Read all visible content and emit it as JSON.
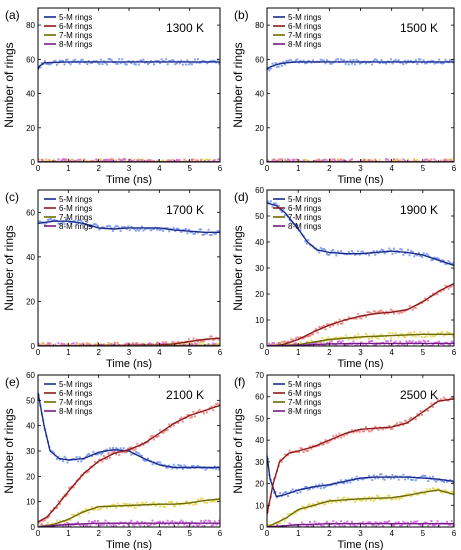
{
  "chart_data": [
    {
      "type": "line",
      "panel_label": "(a)",
      "annotation": "1300 K",
      "xlabel": "Time (ns)",
      "ylabel": "Number of rings",
      "xlim": [
        0,
        6
      ],
      "ylim": [
        0,
        90
      ],
      "x_ticks": [
        0,
        1,
        2,
        3,
        4,
        5,
        6
      ],
      "y_ticks": [
        0,
        20,
        40,
        60,
        80
      ],
      "x_ticklabels": [
        "0",
        "1",
        "2",
        "3",
        "4",
        "5",
        "6"
      ],
      "y_ticklabels": [
        "0",
        "20",
        "40",
        "60",
        "80"
      ],
      "legend": [
        "5-M rings",
        "6-M rings",
        "7-M rings",
        "8-M rings"
      ],
      "series": [
        {
          "name": "5-M rings",
          "color": "#1a2a8a",
          "scatter_color": "#6f8ff0",
          "x": [
            0,
            0.05,
            0.2,
            1,
            2,
            3,
            4,
            5,
            6
          ],
          "y": [
            54,
            56,
            58,
            58.5,
            58.5,
            58.5,
            58.5,
            58.5,
            58.5
          ]
        },
        {
          "name": "6-M rings",
          "color": "#8b1a1a",
          "scatter_color": "#f07a7a",
          "x": [
            0,
            6
          ],
          "y": [
            0,
            0
          ]
        },
        {
          "name": "7-M rings",
          "color": "#6e6a00",
          "scatter_color": "#e2d64a",
          "x": [
            0,
            6
          ],
          "y": [
            0,
            0
          ]
        },
        {
          "name": "8-M rings",
          "color": "#7a1a8a",
          "scatter_color": "#d060e0",
          "x": [
            0,
            6
          ],
          "y": [
            0,
            0
          ]
        }
      ]
    },
    {
      "type": "line",
      "panel_label": "(b)",
      "annotation": "1500 K",
      "xlabel": "Time (ns)",
      "ylabel": "Number of rings",
      "xlim": [
        0,
        6
      ],
      "ylim": [
        0,
        90
      ],
      "x_ticks": [
        0,
        1,
        2,
        3,
        4,
        5,
        6
      ],
      "y_ticks": [
        0,
        20,
        40,
        60,
        80
      ],
      "x_ticklabels": [
        "0",
        "1",
        "2",
        "3",
        "4",
        "5",
        "6"
      ],
      "y_ticklabels": [
        "0",
        "20",
        "40",
        "60",
        "80"
      ],
      "legend": [
        "5-M rings",
        "6-M rings",
        "7-M rings",
        "8-M rings"
      ],
      "series": [
        {
          "name": "5-M rings",
          "color": "#1a2a8a",
          "scatter_color": "#6f8ff0",
          "x": [
            0,
            0.1,
            0.3,
            0.6,
            1,
            2,
            3,
            4,
            5,
            6
          ],
          "y": [
            54,
            55.5,
            57,
            58,
            58.5,
            58.5,
            58.5,
            58.5,
            58.5,
            58.5
          ]
        },
        {
          "name": "6-M rings",
          "color": "#8b1a1a",
          "scatter_color": "#f07a7a",
          "x": [
            0,
            6
          ],
          "y": [
            0,
            0
          ]
        },
        {
          "name": "7-M rings",
          "color": "#6e6a00",
          "scatter_color": "#e2d64a",
          "x": [
            0,
            6
          ],
          "y": [
            0,
            0
          ]
        },
        {
          "name": "8-M rings",
          "color": "#7a1a8a",
          "scatter_color": "#d060e0",
          "x": [
            0,
            6
          ],
          "y": [
            0,
            0
          ]
        }
      ]
    },
    {
      "type": "line",
      "panel_label": "(c)",
      "annotation": "1700 K",
      "xlabel": "Time (ns)",
      "ylabel": "Number of rings",
      "xlim": [
        0,
        6
      ],
      "ylim": [
        0,
        70
      ],
      "x_ticks": [
        0,
        1,
        2,
        3,
        4,
        5,
        6
      ],
      "y_ticks": [
        0,
        20,
        40,
        60
      ],
      "x_ticklabels": [
        "0",
        "1",
        "2",
        "3",
        "4",
        "5",
        "6"
      ],
      "y_ticklabels": [
        "0",
        "20",
        "40",
        "60"
      ],
      "legend": [
        "5-M rings",
        "6-M rings",
        "7-M rings",
        "8-M rings"
      ],
      "series": [
        {
          "name": "5-M rings",
          "color": "#1a2a8a",
          "scatter_color": "#6f8ff0",
          "x": [
            0,
            0.5,
            1,
            1.5,
            2,
            2.5,
            3,
            3.5,
            4,
            4.5,
            5,
            5.5,
            6
          ],
          "y": [
            55,
            56,
            56,
            55,
            53,
            52.5,
            53,
            53,
            53,
            52,
            51.5,
            51,
            51
          ]
        },
        {
          "name": "6-M rings",
          "color": "#8b1a1a",
          "scatter_color": "#f07a7a",
          "x": [
            0,
            1,
            2,
            3,
            4,
            4.5,
            5,
            5.5,
            6
          ],
          "y": [
            0,
            0,
            0.3,
            0.3,
            0.5,
            1,
            2,
            3,
            3.5
          ]
        },
        {
          "name": "7-M rings",
          "color": "#6e6a00",
          "scatter_color": "#e2d64a",
          "x": [
            0,
            6
          ],
          "y": [
            0,
            0.3
          ]
        },
        {
          "name": "8-M rings",
          "color": "#7a1a8a",
          "scatter_color": "#d060e0",
          "x": [
            0,
            6
          ],
          "y": [
            0,
            0
          ]
        }
      ]
    },
    {
      "type": "line",
      "panel_label": "(d)",
      "annotation": "1900 K",
      "xlabel": "Time (ns)",
      "ylabel": "Number of rings",
      "xlim": [
        0,
        6
      ],
      "ylim": [
        0,
        60
      ],
      "x_ticks": [
        0,
        1,
        2,
        3,
        4,
        5,
        6
      ],
      "y_ticks": [
        0,
        10,
        20,
        30,
        40,
        50,
        60
      ],
      "x_ticklabels": [
        "0",
        "1",
        "2",
        "3",
        "4",
        "5",
        "6"
      ],
      "y_ticklabels": [
        "0",
        "10",
        "20",
        "30",
        "40",
        "50",
        "60"
      ],
      "legend": [
        "5-M rings",
        "6-M rings",
        "7-M rings",
        "8-M rings"
      ],
      "series": [
        {
          "name": "5-M rings",
          "color": "#1a2a8a",
          "scatter_color": "#6f8ff0",
          "x": [
            0,
            0.3,
            0.6,
            1,
            1.3,
            1.6,
            2,
            2.5,
            3,
            3.5,
            4,
            4.5,
            5,
            5.5,
            6
          ],
          "y": [
            55,
            54,
            51,
            45,
            40,
            37,
            36,
            35.5,
            35.5,
            36,
            36.5,
            36,
            35,
            33,
            31
          ]
        },
        {
          "name": "6-M rings",
          "color": "#8b1a1a",
          "scatter_color": "#f07a7a",
          "x": [
            0,
            0.5,
            1,
            1.5,
            2,
            2.5,
            3,
            3.5,
            4,
            4.5,
            5,
            5.5,
            6
          ],
          "y": [
            0,
            0.5,
            2.5,
            5.5,
            8,
            10,
            11.5,
            12.5,
            13,
            14,
            17,
            21,
            24
          ]
        },
        {
          "name": "7-M rings",
          "color": "#6e6a00",
          "scatter_color": "#e2d64a",
          "x": [
            0,
            1,
            1.5,
            2,
            3,
            4,
            5,
            6
          ],
          "y": [
            0,
            0.5,
            1.5,
            2.5,
            3.5,
            4,
            4.5,
            4.5
          ]
        },
        {
          "name": "8-M rings",
          "color": "#7a1a8a",
          "scatter_color": "#d060e0",
          "x": [
            0,
            1,
            2,
            3,
            4,
            5,
            6
          ],
          "y": [
            0,
            0.3,
            0.8,
            1,
            1,
            1,
            1
          ]
        }
      ]
    },
    {
      "type": "line",
      "panel_label": "(e)",
      "annotation": "2100 K",
      "xlabel": "Time (ns)",
      "ylabel": "Number of rings",
      "xlim": [
        0,
        6
      ],
      "ylim": [
        0,
        60
      ],
      "x_ticks": [
        0,
        1,
        2,
        3,
        4,
        5,
        6
      ],
      "y_ticks": [
        0,
        10,
        20,
        30,
        40,
        50,
        60
      ],
      "x_ticklabels": [
        "0",
        "1",
        "2",
        "3",
        "4",
        "5",
        "6"
      ],
      "y_ticklabels": [
        "0",
        "10",
        "20",
        "30",
        "40",
        "50",
        "60"
      ],
      "legend": [
        "5-M rings",
        "6-M rings",
        "7-M rings",
        "8-M rings"
      ],
      "series": [
        {
          "name": "5-M rings",
          "color": "#1a2a8a",
          "scatter_color": "#6f8ff0",
          "x": [
            0,
            0.2,
            0.4,
            0.7,
            1,
            1.5,
            2,
            2.5,
            3,
            3.5,
            4,
            4.5,
            5,
            5.5,
            6
          ],
          "y": [
            53,
            40,
            30,
            27,
            26.5,
            27,
            29.5,
            30.5,
            30,
            27,
            24.5,
            23.5,
            23.5,
            23.5,
            23.5
          ]
        },
        {
          "name": "6-M rings",
          "color": "#8b1a1a",
          "scatter_color": "#f07a7a",
          "x": [
            0,
            0.3,
            0.6,
            1,
            1.5,
            2,
            2.5,
            3,
            3.5,
            4,
            4.5,
            5,
            5.5,
            6
          ],
          "y": [
            2,
            4,
            8,
            14,
            21,
            26,
            29,
            30.5,
            33,
            37,
            41,
            44,
            46,
            48
          ]
        },
        {
          "name": "7-M rings",
          "color": "#6e6a00",
          "scatter_color": "#e2d64a",
          "x": [
            0,
            0.5,
            1,
            1.5,
            2,
            3,
            4,
            4.5,
            5,
            5.5,
            6
          ],
          "y": [
            0,
            1,
            3,
            6,
            8,
            8.5,
            9,
            9,
            9.5,
            10.5,
            11
          ]
        },
        {
          "name": "8-M rings",
          "color": "#7a1a8a",
          "scatter_color": "#d060e0",
          "x": [
            0,
            1,
            2,
            3,
            4,
            5,
            6
          ],
          "y": [
            0,
            1,
            1.5,
            1.5,
            1.5,
            1.5,
            1.5
          ]
        }
      ]
    },
    {
      "type": "line",
      "panel_label": "(f)",
      "annotation": "2500 K",
      "xlabel": "Time (ns)",
      "ylabel": "Number of rings",
      "xlim": [
        0,
        6
      ],
      "ylim": [
        0,
        70
      ],
      "x_ticks": [
        0,
        1,
        2,
        3,
        4,
        5,
        6
      ],
      "y_ticks": [
        0,
        10,
        20,
        30,
        40,
        50,
        60,
        70
      ],
      "x_ticklabels": [
        "0",
        "1",
        "2",
        "3",
        "4",
        "5",
        "6"
      ],
      "y_ticklabels": [
        "0",
        "10",
        "20",
        "30",
        "40",
        "50",
        "60",
        "70"
      ],
      "legend": [
        "5-M rings",
        "6-M rings",
        "7-M rings",
        "8-M rings"
      ],
      "series": [
        {
          "name": "5-M rings",
          "color": "#1a2a8a",
          "scatter_color": "#6f8ff0",
          "x": [
            0,
            0.1,
            0.3,
            0.6,
            1,
            1.5,
            2,
            2.5,
            3,
            3.5,
            4,
            4.5,
            5,
            5.5,
            6
          ],
          "y": [
            33,
            22,
            14,
            15,
            17,
            18.5,
            19.5,
            21,
            22.5,
            23,
            23,
            23,
            22.5,
            22,
            21
          ]
        },
        {
          "name": "6-M rings",
          "color": "#8b1a1a",
          "scatter_color": "#f07a7a",
          "x": [
            0,
            0.2,
            0.4,
            0.7,
            1,
            1.5,
            2,
            2.5,
            3,
            3.5,
            4,
            4.5,
            5,
            5.5,
            6
          ],
          "y": [
            6,
            20,
            30,
            34,
            35,
            37,
            40,
            43,
            45,
            45.5,
            46,
            48,
            53,
            58,
            59
          ]
        },
        {
          "name": "7-M rings",
          "color": "#6e6a00",
          "scatter_color": "#e2d64a",
          "x": [
            0,
            0.3,
            0.6,
            1,
            1.5,
            2,
            3,
            4,
            4.5,
            5,
            5.5,
            6
          ],
          "y": [
            0,
            2,
            4,
            8,
            10,
            12,
            13,
            13.5,
            14.5,
            16,
            17,
            15
          ]
        },
        {
          "name": "8-M rings",
          "color": "#7a1a8a",
          "scatter_color": "#d060e0",
          "x": [
            0,
            1,
            2,
            3,
            4,
            5,
            6
          ],
          "y": [
            0,
            1,
            1.5,
            1.5,
            1.5,
            1.5,
            1.5
          ]
        }
      ]
    }
  ]
}
